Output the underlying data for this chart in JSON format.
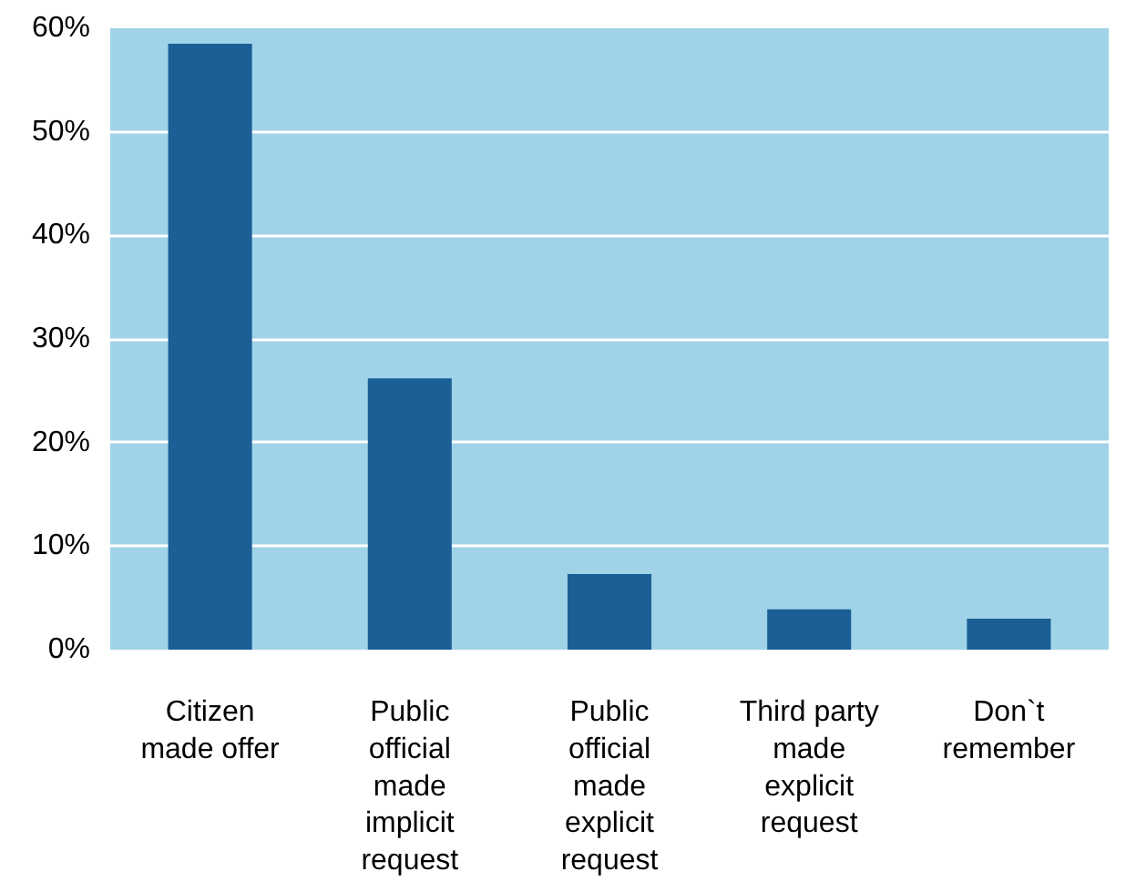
{
  "chart_data": {
    "type": "bar",
    "categories": [
      "Citizen made offer",
      "Public official made implicit request",
      "Public official made explicit request",
      "Third party made explicit request",
      "Don`t remember"
    ],
    "values": [
      58.5,
      26.2,
      7.3,
      3.9,
      3.0
    ],
    "color": "#1a5f96",
    "ylim": [
      0,
      60
    ],
    "yticks": [
      {
        "value": 0,
        "label": "0%"
      },
      {
        "value": 10,
        "label": "10%"
      },
      {
        "value": 20,
        "label": "20%"
      },
      {
        "value": 30,
        "label": "30%"
      },
      {
        "value": 40,
        "label": "40%"
      },
      {
        "value": 50,
        "label": "50%"
      },
      {
        "value": 60,
        "label": "60%"
      }
    ],
    "grid": "y"
  }
}
